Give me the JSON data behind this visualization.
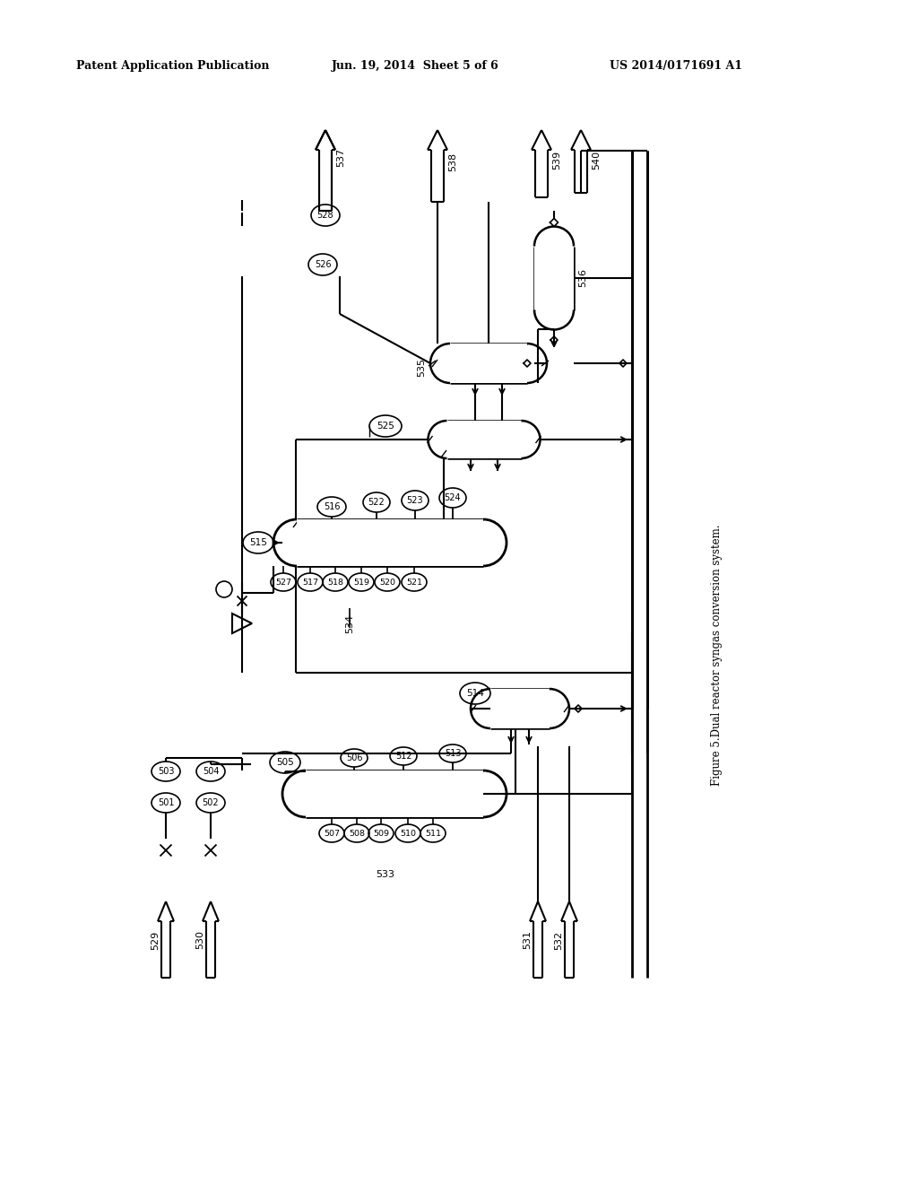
{
  "title": "Figure 5.Dual reactor syngas conversion system.",
  "header_left": "Patent Application Publication",
  "header_center": "Jun. 19, 2014  Sheet 5 of 6",
  "header_right": "US 2014/0171691 A1",
  "bg_color": "#ffffff"
}
